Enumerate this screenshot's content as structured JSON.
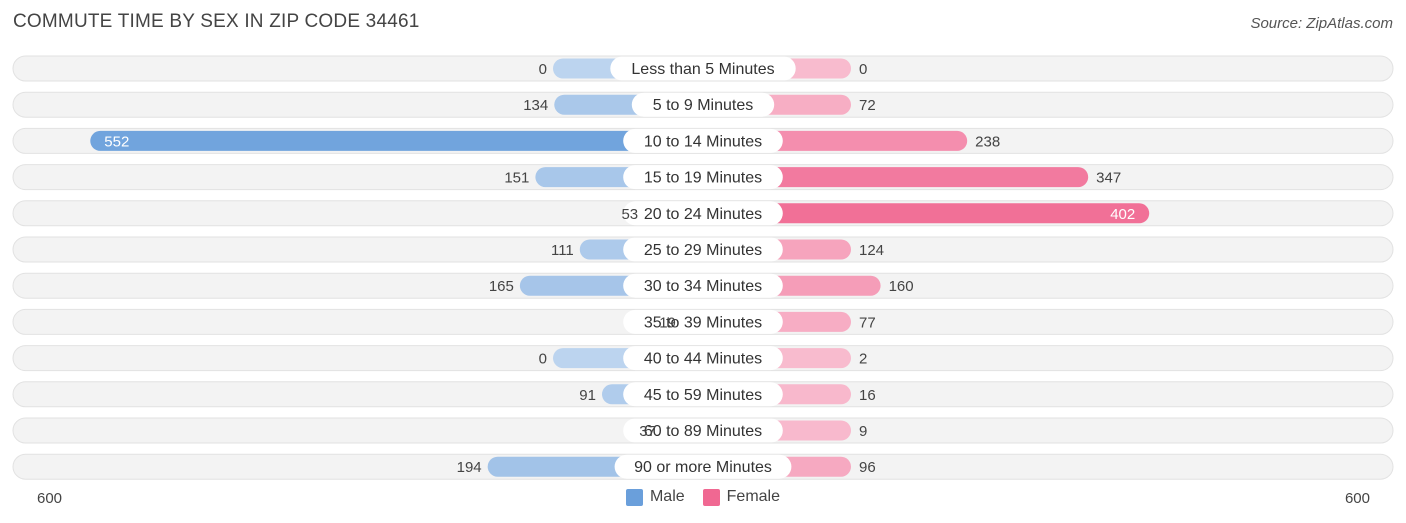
{
  "title": "COMMUTE TIME BY SEX IN ZIP CODE 34461",
  "source": "Source: ZipAtlas.com",
  "colors": {
    "male": "#6a9fdb",
    "female": "#f06892",
    "track": "#f1f1f1"
  },
  "legend": {
    "male_label": "Male",
    "female_label": "Female"
  },
  "axis": {
    "left_label": "600",
    "right_label": "600"
  },
  "chart_data": {
    "type": "bar",
    "orientation": "diverging-horizontal",
    "categories": [
      "Less than 5 Minutes",
      "5 to 9 Minutes",
      "10 to 14 Minutes",
      "15 to 19 Minutes",
      "20 to 24 Minutes",
      "25 to 29 Minutes",
      "30 to 34 Minutes",
      "35 to 39 Minutes",
      "40 to 44 Minutes",
      "45 to 59 Minutes",
      "60 to 89 Minutes",
      "90 or more Minutes"
    ],
    "series": [
      {
        "name": "Male",
        "values": [
          0,
          134,
          552,
          151,
          53,
          111,
          165,
          19,
          0,
          91,
          37,
          194
        ]
      },
      {
        "name": "Female",
        "values": [
          0,
          72,
          238,
          347,
          402,
          124,
          160,
          77,
          2,
          16,
          9,
          96
        ]
      }
    ],
    "xlim": [
      -600,
      600
    ],
    "legend_position": "bottom-center"
  }
}
